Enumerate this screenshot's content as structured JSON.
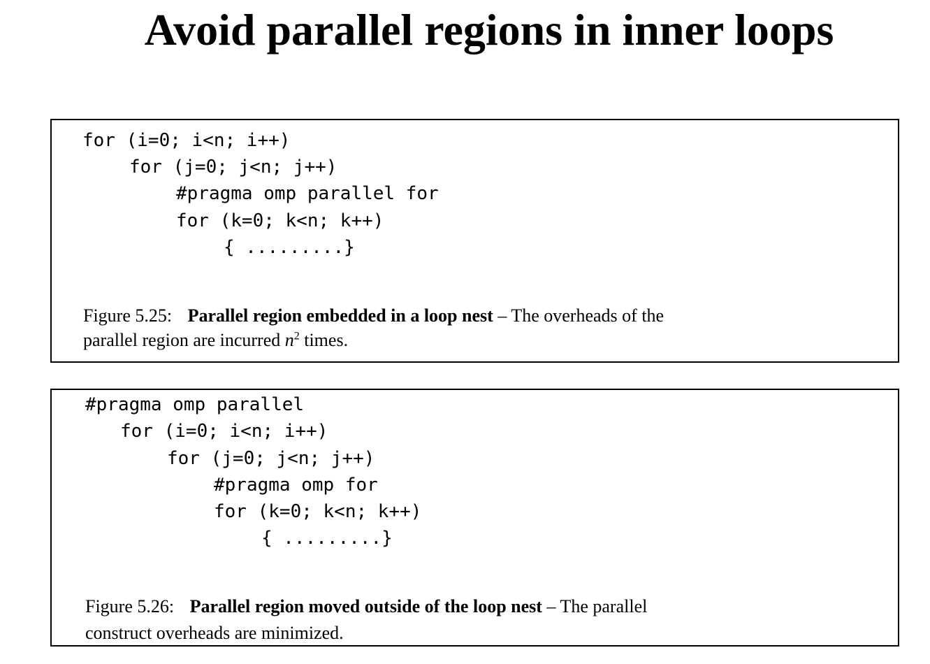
{
  "title": "Avoid parallel regions in inner loops",
  "figures": [
    {
      "code": [
        "for (i=0; i<n; i++)",
        "for (j=0; j<n; j++)",
        "#pragma omp parallel for",
        "for (k=0; k<n; k++)",
        "{ .........}"
      ],
      "caption": {
        "number": "Figure 5.25:",
        "title": "Parallel region embedded in a loop nest",
        "dash": "–",
        "text_line1": "The overheads of the",
        "text_line2_a": "parallel region are incurred",
        "variable": "n",
        "exponent": "2",
        "text_line2_b": "times."
      }
    },
    {
      "code": [
        "#pragma omp parallel",
        "for (i=0; i<n; i++)",
        "for (j=0; j<n; j++)",
        "#pragma omp for",
        "for (k=0; k<n; k++)",
        "{ .........}"
      ],
      "caption": {
        "number": "Figure 5.26:",
        "title": "Parallel region moved outside of the loop nest",
        "dash": "–",
        "text_line1": "The parallel",
        "text_line2": "construct overheads are minimized."
      }
    }
  ]
}
